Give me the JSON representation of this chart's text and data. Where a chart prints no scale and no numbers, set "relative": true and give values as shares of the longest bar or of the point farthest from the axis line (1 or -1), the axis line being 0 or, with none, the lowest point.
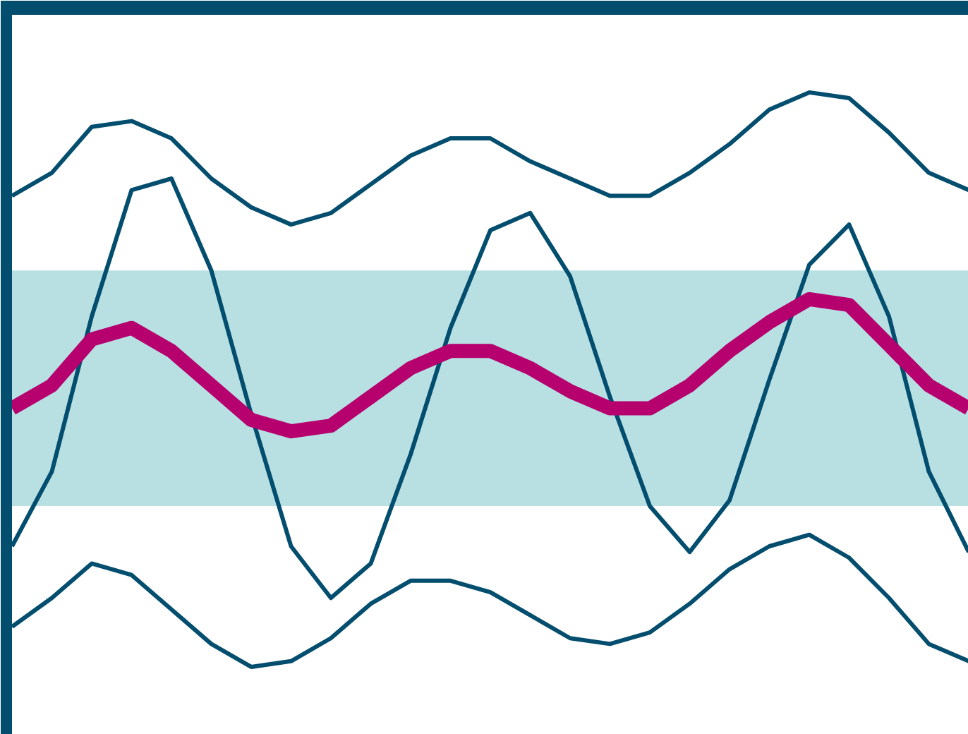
{
  "chart_data": {
    "type": "line",
    "relative": true,
    "grid": false,
    "marker": "none",
    "line_style": "solid",
    "categories": [
      null,
      null,
      null,
      null,
      null,
      null,
      null,
      null,
      null,
      null,
      null,
      null,
      null,
      null,
      null,
      null,
      null,
      null,
      null,
      null,
      null,
      null,
      null,
      null,
      null
    ],
    "bands": [
      {
        "axis": "y",
        "from": 0.28,
        "to": 0.69,
        "color": "#b8e0e3"
      }
    ],
    "series": [
      {
        "color": "#034e6e",
        "values": [
          0.82,
          0.86,
          0.94,
          0.95,
          0.92,
          0.85,
          0.8,
          0.77,
          0.79,
          0.84,
          0.89,
          0.92,
          0.92,
          0.88,
          0.85,
          0.82,
          0.82,
          0.86,
          0.91,
          0.97,
          1.0,
          0.99,
          0.93,
          0.86,
          0.83
        ]
      },
      {
        "color": "#034e6e",
        "values": [
          0.07,
          0.12,
          0.18,
          0.16,
          0.1,
          0.04,
          0.0,
          0.01,
          0.05,
          0.11,
          0.15,
          0.15,
          0.13,
          0.09,
          0.05,
          0.04,
          0.06,
          0.11,
          0.17,
          0.21,
          0.23,
          0.19,
          0.12,
          0.04,
          0.01
        ]
      },
      {
        "color": "#034e6e",
        "values": [
          0.21,
          0.34,
          0.61,
          0.83,
          0.85,
          0.69,
          0.44,
          0.21,
          0.12,
          0.18,
          0.37,
          0.59,
          0.76,
          0.79,
          0.68,
          0.47,
          0.28,
          0.2,
          0.29,
          0.5,
          0.7,
          0.77,
          0.61,
          0.34,
          0.2
        ]
      },
      {
        "color": "#b5006e",
        "values": [
          0.45,
          0.49,
          0.57,
          0.59,
          0.55,
          0.49,
          0.43,
          0.41,
          0.42,
          0.47,
          0.52,
          0.55,
          0.55,
          0.52,
          0.48,
          0.45,
          0.45,
          0.49,
          0.55,
          0.6,
          0.64,
          0.63,
          0.56,
          0.49,
          0.45
        ]
      }
    ]
  }
}
